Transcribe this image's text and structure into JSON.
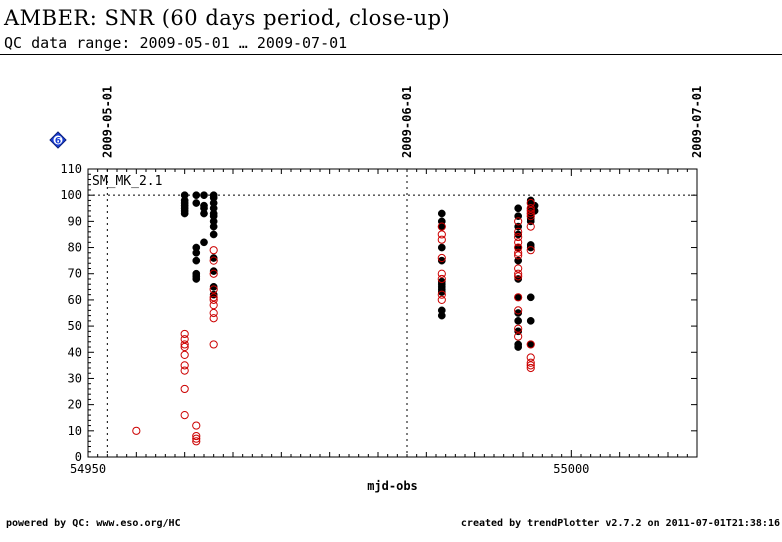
{
  "header": {
    "title": "AMBER: SNR (60 days period, close-up)",
    "subtitle": "QC data range: 2009-05-01 … 2009-07-01"
  },
  "footer": {
    "left": "powered by QC: www.eso.org/HC",
    "right": "created by trendPlotter v2.7.2 on 2011-07-01T21:38:16"
  },
  "chart_data": {
    "type": "scatter",
    "xlabel": "mjd-obs",
    "ylabel": "",
    "xlim": [
      54950,
      55013
    ],
    "ylim": [
      0,
      110
    ],
    "x_ticks": [
      54950,
      55000
    ],
    "y_ticks": [
      0,
      10,
      20,
      30,
      40,
      50,
      60,
      70,
      80,
      90,
      100,
      110
    ],
    "date_markers": [
      {
        "label": "2009-05-01",
        "x": 54952
      },
      {
        "label": "2009-06-01",
        "x": 54983
      },
      {
        "label": "2009-07-01",
        "x": 55013
      }
    ],
    "reference_line": 100,
    "panel_label": "SM_MK_2.1",
    "badge": "6",
    "colors": {
      "filled": "#000000",
      "open": "#cc0000",
      "badge": "#1a3fd6"
    },
    "series": [
      {
        "marker": "filled-black",
        "points": [
          [
            54960,
            100
          ],
          [
            54960,
            98
          ],
          [
            54960,
            97
          ],
          [
            54960,
            96
          ],
          [
            54960,
            95
          ],
          [
            54960,
            94
          ],
          [
            54960,
            93
          ],
          [
            54961.2,
            100
          ],
          [
            54961.2,
            97
          ],
          [
            54961.2,
            80
          ],
          [
            54961.2,
            78
          ],
          [
            54961.2,
            75
          ],
          [
            54961.2,
            70
          ],
          [
            54961.2,
            69
          ],
          [
            54961.2,
            68
          ],
          [
            54962,
            100
          ],
          [
            54962,
            96
          ],
          [
            54962,
            95
          ],
          [
            54962,
            93
          ],
          [
            54962,
            82
          ],
          [
            54963,
            100
          ],
          [
            54963,
            99
          ],
          [
            54963,
            97
          ],
          [
            54963,
            95
          ],
          [
            54963,
            93
          ],
          [
            54963,
            92
          ],
          [
            54963,
            90
          ],
          [
            54963,
            88
          ],
          [
            54963,
            85
          ],
          [
            54963,
            76
          ],
          [
            54963,
            71
          ],
          [
            54963,
            65
          ],
          [
            54963,
            62
          ],
          [
            54986.6,
            93
          ],
          [
            54986.6,
            90
          ],
          [
            54986.6,
            88
          ],
          [
            54986.6,
            80
          ],
          [
            54986.6,
            75
          ],
          [
            54986.6,
            67
          ],
          [
            54986.6,
            66
          ],
          [
            54986.6,
            65
          ],
          [
            54986.6,
            64
          ],
          [
            54986.6,
            63
          ],
          [
            54986.6,
            56
          ],
          [
            54986.6,
            54
          ],
          [
            54994.5,
            95
          ],
          [
            54994.5,
            92
          ],
          [
            54994.5,
            88
          ],
          [
            54994.5,
            85
          ],
          [
            54994.5,
            80
          ],
          [
            54994.5,
            75
          ],
          [
            54994.5,
            68
          ],
          [
            54994.5,
            61
          ],
          [
            54994.5,
            55
          ],
          [
            54994.5,
            52
          ],
          [
            54994.5,
            48
          ],
          [
            54994.5,
            43
          ],
          [
            54994.5,
            42
          ],
          [
            54995.8,
            98
          ],
          [
            54995.8,
            97
          ],
          [
            54995.8,
            95
          ],
          [
            54995.8,
            93
          ],
          [
            54995.8,
            92
          ],
          [
            54995.8,
            91
          ],
          [
            54995.8,
            90
          ],
          [
            54995.8,
            81
          ],
          [
            54995.8,
            80
          ],
          [
            54995.8,
            61
          ],
          [
            54995.8,
            52
          ],
          [
            54995.8,
            43
          ],
          [
            54996.2,
            96
          ],
          [
            54996.2,
            94
          ]
        ]
      },
      {
        "marker": "open-red",
        "points": [
          [
            54955,
            10
          ],
          [
            54960,
            47
          ],
          [
            54960,
            45
          ],
          [
            54960,
            43
          ],
          [
            54960,
            42
          ],
          [
            54960,
            39
          ],
          [
            54960,
            35
          ],
          [
            54960,
            33
          ],
          [
            54960,
            26
          ],
          [
            54960,
            16
          ],
          [
            54961.2,
            12
          ],
          [
            54961.2,
            8
          ],
          [
            54961.2,
            7
          ],
          [
            54961.2,
            6
          ],
          [
            54963,
            79
          ],
          [
            54963,
            75
          ],
          [
            54963,
            70
          ],
          [
            54963,
            64
          ],
          [
            54963,
            61
          ],
          [
            54963,
            60
          ],
          [
            54963,
            58
          ],
          [
            54963,
            55
          ],
          [
            54963,
            53
          ],
          [
            54963,
            43
          ],
          [
            54986.6,
            88
          ],
          [
            54986.6,
            85
          ],
          [
            54986.6,
            83
          ],
          [
            54986.6,
            76
          ],
          [
            54986.6,
            70
          ],
          [
            54986.6,
            68
          ],
          [
            54986.6,
            62
          ],
          [
            54986.6,
            60
          ],
          [
            54994.5,
            90
          ],
          [
            54994.5,
            86
          ],
          [
            54994.5,
            84
          ],
          [
            54994.5,
            82
          ],
          [
            54994.5,
            80
          ],
          [
            54994.5,
            78
          ],
          [
            54994.5,
            77
          ],
          [
            54994.5,
            72
          ],
          [
            54994.5,
            70
          ],
          [
            54994.5,
            69
          ],
          [
            54994.5,
            61
          ],
          [
            54994.5,
            56
          ],
          [
            54994.5,
            49
          ],
          [
            54994.5,
            46
          ],
          [
            54995.8,
            97
          ],
          [
            54995.8,
            95
          ],
          [
            54995.8,
            94
          ],
          [
            54995.8,
            93
          ],
          [
            54995.8,
            92
          ],
          [
            54995.8,
            88
          ],
          [
            54995.8,
            79
          ],
          [
            54995.8,
            43
          ],
          [
            54995.8,
            38
          ],
          [
            54995.8,
            36
          ],
          [
            54995.8,
            35
          ],
          [
            54995.8,
            34
          ]
        ]
      }
    ]
  }
}
